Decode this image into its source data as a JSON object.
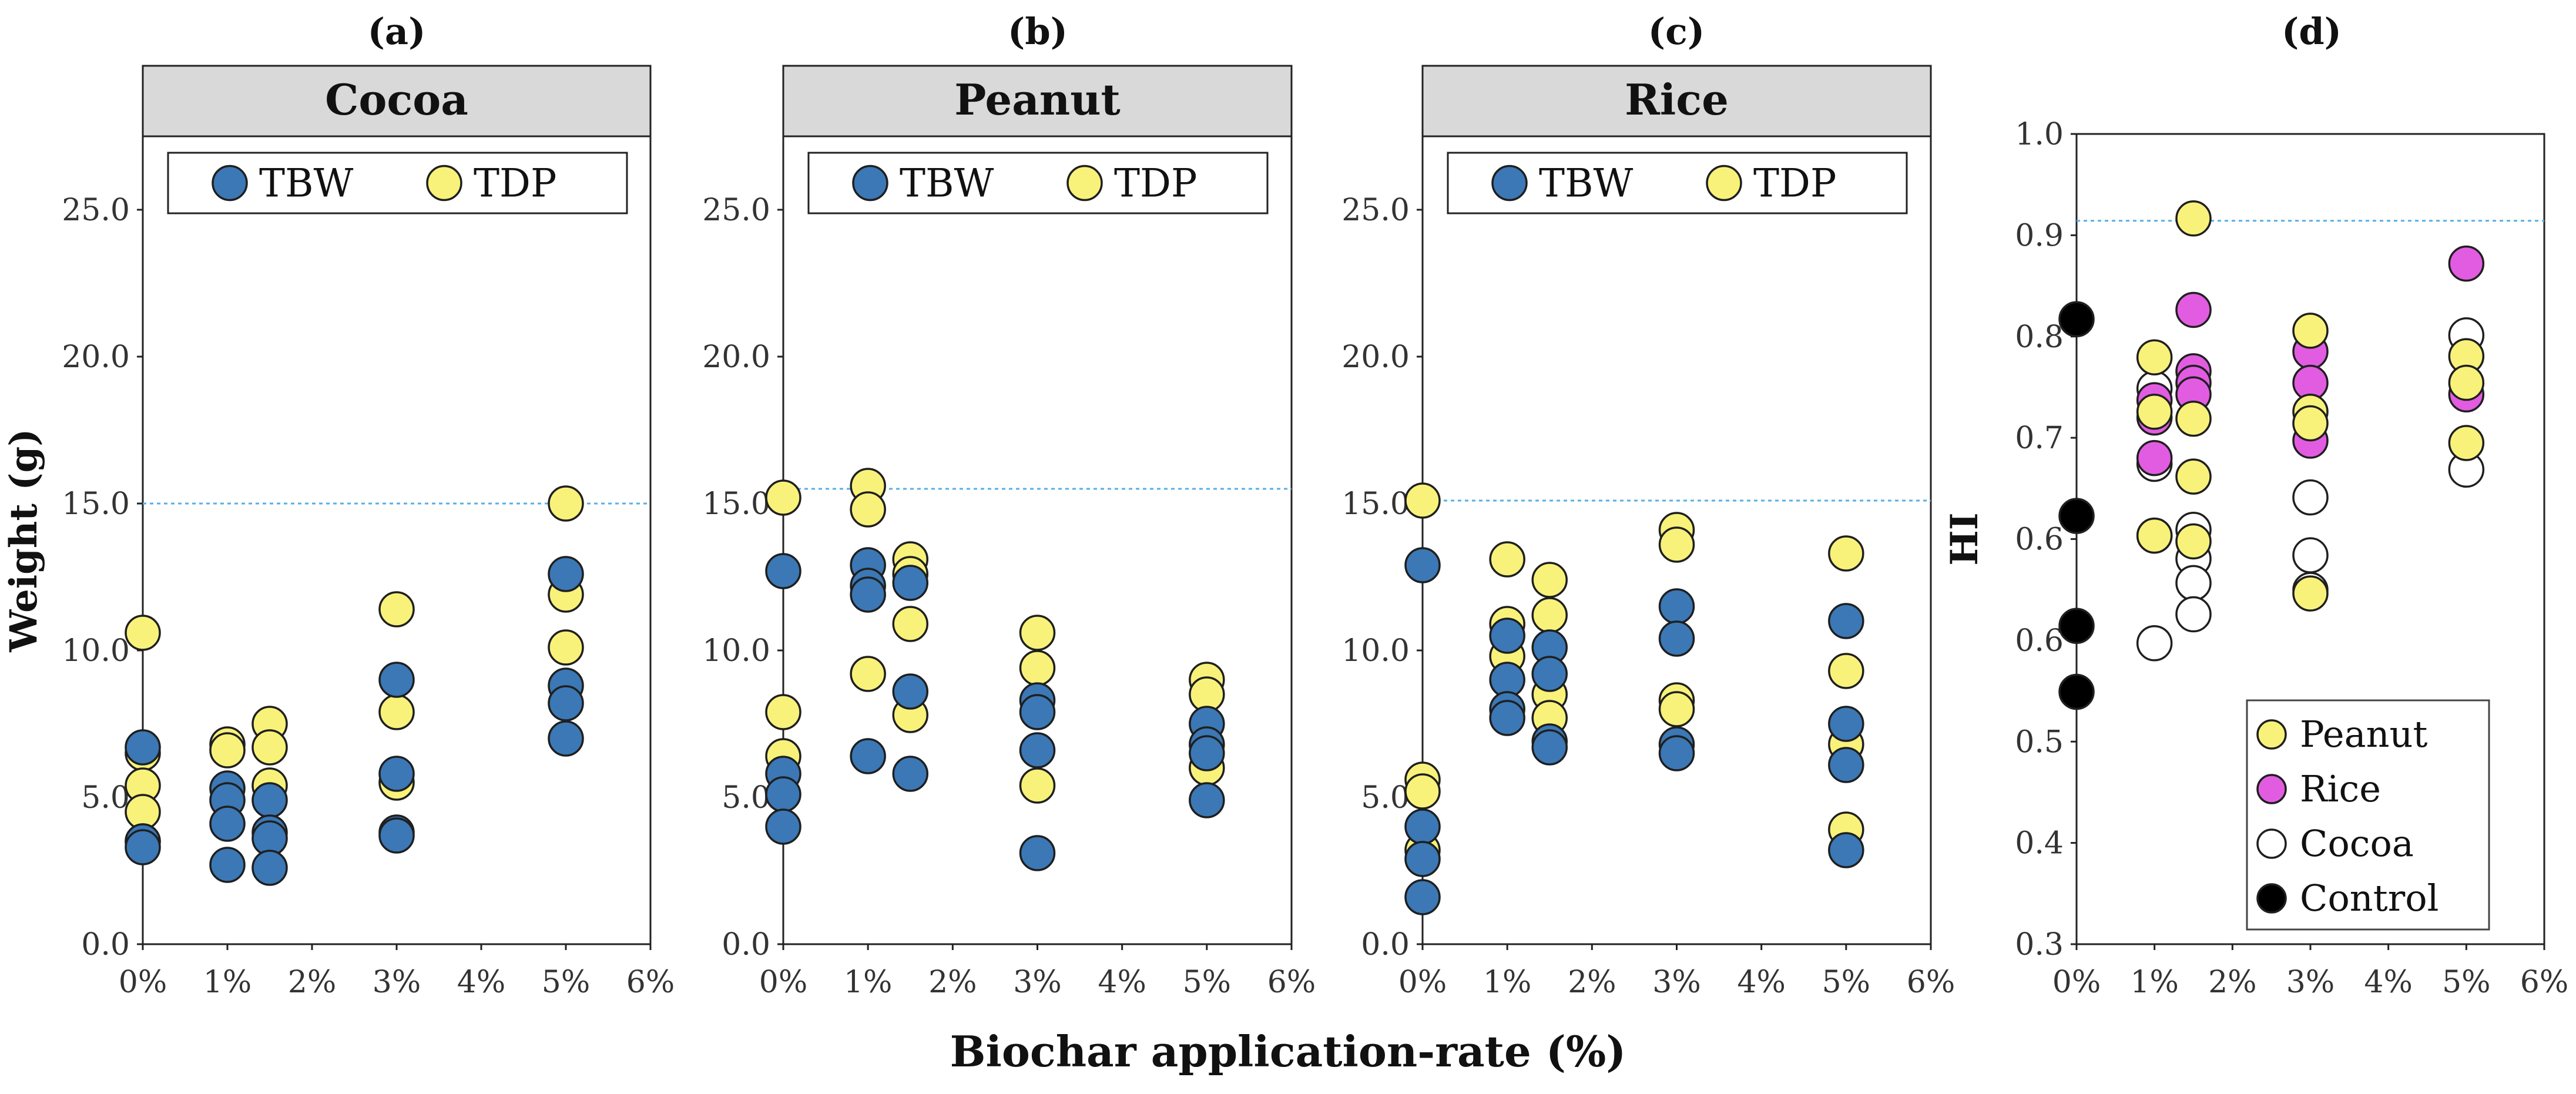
{
  "figure": {
    "xlabel": "Biochar application-rate (%)",
    "xticks": [
      "0%",
      "1%",
      "2%",
      "3%",
      "4%",
      "5%",
      "6%"
    ]
  },
  "colors": {
    "tbw": "#3b78b5",
    "tdp": "#f8f27a",
    "rice": "#e25ce2",
    "cocoa": "#ffffff",
    "control": "#000000",
    "refline": "#5aaee5",
    "strip": "#d9d9d9"
  },
  "chart_data": [
    {
      "type": "scatter",
      "panel": "(a)",
      "title": "Cocoa",
      "ylabel": "Weight (g)",
      "ylim": [
        0,
        27.5
      ],
      "yticks": [
        "0.0",
        "5.0",
        "10.0",
        "15.0",
        "20.0",
        "25.0"
      ],
      "xlim": [
        0,
        6
      ],
      "reference_line": 15.0,
      "legend": [
        "TBW",
        "TDP"
      ],
      "series": [
        {
          "name": "TDP",
          "color": "tdp",
          "points": [
            [
              0,
              10.6
            ],
            [
              0,
              6.5
            ],
            [
              0,
              5.4
            ],
            [
              0,
              4.5
            ],
            [
              0,
              3.5
            ],
            [
              1,
              6.8
            ],
            [
              1,
              6.6
            ],
            [
              1.5,
              7.5
            ],
            [
              1.5,
              6.7
            ],
            [
              1.5,
              5.4
            ],
            [
              3,
              11.4
            ],
            [
              3,
              7.9
            ],
            [
              3,
              5.5
            ],
            [
              5,
              15.0
            ],
            [
              5,
              11.9
            ],
            [
              5,
              10.1
            ]
          ]
        },
        {
          "name": "TBW",
          "color": "tbw",
          "points": [
            [
              0,
              6.7
            ],
            [
              0,
              3.5
            ],
            [
              0,
              3.3
            ],
            [
              1,
              5.3
            ],
            [
              1,
              4.9
            ],
            [
              1,
              4.1
            ],
            [
              1,
              2.7
            ],
            [
              1.5,
              4.9
            ],
            [
              1.5,
              3.8
            ],
            [
              1.5,
              3.6
            ],
            [
              1.5,
              2.6
            ],
            [
              3,
              9.0
            ],
            [
              3,
              5.8
            ],
            [
              3,
              3.8
            ],
            [
              3,
              3.7
            ],
            [
              5,
              12.6
            ],
            [
              5,
              8.8
            ],
            [
              5,
              8.2
            ],
            [
              5,
              7.0
            ]
          ]
        }
      ]
    },
    {
      "type": "scatter",
      "panel": "(b)",
      "title": "Peanut",
      "ylim": [
        0,
        27.5
      ],
      "yticks": [
        "0.0",
        "5.0",
        "10.0",
        "15.0",
        "20.0",
        "25.0"
      ],
      "xlim": [
        0,
        6
      ],
      "reference_line": 15.5,
      "legend": [
        "TBW",
        "TDP"
      ],
      "series": [
        {
          "name": "TDP",
          "color": "tdp",
          "points": [
            [
              0,
              15.2
            ],
            [
              0,
              7.9
            ],
            [
              0,
              6.4
            ],
            [
              1,
              15.6
            ],
            [
              1,
              14.8
            ],
            [
              1,
              9.2
            ],
            [
              1.5,
              13.1
            ],
            [
              1.5,
              12.6
            ],
            [
              1.5,
              10.9
            ],
            [
              1.5,
              7.8
            ],
            [
              3,
              10.6
            ],
            [
              3,
              9.4
            ],
            [
              3,
              5.4
            ],
            [
              5,
              9.0
            ],
            [
              5,
              8.5
            ],
            [
              5,
              6.0
            ]
          ]
        },
        {
          "name": "TBW",
          "color": "tbw",
          "points": [
            [
              0,
              12.7
            ],
            [
              0,
              5.8
            ],
            [
              0,
              5.1
            ],
            [
              0,
              4.0
            ],
            [
              1,
              12.9
            ],
            [
              1,
              12.2
            ],
            [
              1,
              11.9
            ],
            [
              1,
              6.4
            ],
            [
              1.5,
              12.3
            ],
            [
              1.5,
              8.6
            ],
            [
              1.5,
              5.8
            ],
            [
              3,
              8.3
            ],
            [
              3,
              7.9
            ],
            [
              3,
              6.6
            ],
            [
              3,
              3.1
            ],
            [
              5,
              7.5
            ],
            [
              5,
              6.8
            ],
            [
              5,
              6.5
            ],
            [
              5,
              4.9
            ]
          ]
        }
      ]
    },
    {
      "type": "scatter",
      "panel": "(c)",
      "title": "Rice",
      "ylim": [
        0,
        27.5
      ],
      "yticks": [
        "0.0",
        "5.0",
        "10.0",
        "15.0",
        "20.0",
        "25.0"
      ],
      "xlim": [
        0,
        6
      ],
      "reference_line": 15.1,
      "legend": [
        "TBW",
        "TDP"
      ],
      "series": [
        {
          "name": "TDP",
          "color": "tdp",
          "points": [
            [
              0,
              15.1
            ],
            [
              0,
              5.6
            ],
            [
              0,
              5.2
            ],
            [
              0,
              3.2
            ],
            [
              1,
              13.1
            ],
            [
              1,
              10.9
            ],
            [
              1,
              9.8
            ],
            [
              1.5,
              12.4
            ],
            [
              1.5,
              11.2
            ],
            [
              1.5,
              8.5
            ],
            [
              1.5,
              7.7
            ],
            [
              3,
              14.1
            ],
            [
              3,
              13.6
            ],
            [
              3,
              8.3
            ],
            [
              3,
              8.0
            ],
            [
              5,
              13.3
            ],
            [
              5,
              9.3
            ],
            [
              5,
              6.8
            ],
            [
              5,
              3.9
            ]
          ]
        },
        {
          "name": "TBW",
          "color": "tbw",
          "points": [
            [
              0,
              12.9
            ],
            [
              0,
              4.0
            ],
            [
              0,
              2.9
            ],
            [
              0,
              1.6
            ],
            [
              1,
              10.5
            ],
            [
              1,
              9.0
            ],
            [
              1,
              8.0
            ],
            [
              1,
              7.7
            ],
            [
              1.5,
              10.1
            ],
            [
              1.5,
              9.2
            ],
            [
              1.5,
              6.9
            ],
            [
              1.5,
              6.7
            ],
            [
              3,
              11.5
            ],
            [
              3,
              10.4
            ],
            [
              3,
              6.8
            ],
            [
              3,
              6.5
            ],
            [
              5,
              11.0
            ],
            [
              5,
              7.5
            ],
            [
              5,
              6.1
            ],
            [
              5,
              3.2
            ]
          ]
        }
      ]
    },
    {
      "type": "scatter",
      "panel": "(d)",
      "ylabel": "HI",
      "ylim": [
        0.3,
        1.0
      ],
      "yticks": [
        "0.3",
        "0.4",
        "0.5",
        "0.6",
        "0.6",
        "0.7",
        "0.8",
        "0.9",
        "1.0"
      ],
      "xlim": [
        0,
        6
      ],
      "reference_line": 0.925,
      "legend": [
        "Peanut",
        "Rice",
        "Cocoa",
        "Control"
      ],
      "series": [
        {
          "name": "Control",
          "color": "control",
          "points": [
            [
              0,
              0.84
            ],
            [
              0,
              0.67
            ],
            [
              0,
              0.575
            ],
            [
              0,
              0.518
            ]
          ]
        },
        {
          "name": "Cocoa",
          "color": "cocoa",
          "points": [
            [
              1,
              0.78
            ],
            [
              1,
              0.715
            ],
            [
              1,
              0.653
            ],
            [
              1,
              0.56
            ],
            [
              1.5,
              0.658
            ],
            [
              1.5,
              0.633
            ],
            [
              1.5,
              0.612
            ],
            [
              1.5,
              0.585
            ],
            [
              3,
              0.686
            ],
            [
              3,
              0.636
            ],
            [
              3,
              0.606
            ],
            [
              5,
              0.826
            ],
            [
              5,
              0.71
            ]
          ]
        },
        {
          "name": "Rice",
          "color": "rice",
          "points": [
            [
              1,
              0.77
            ],
            [
              1,
              0.755
            ],
            [
              1,
              0.72
            ],
            [
              1.5,
              0.848
            ],
            [
              1.5,
              0.795
            ],
            [
              1.5,
              0.785
            ],
            [
              1.5,
              0.775
            ],
            [
              3,
              0.812
            ],
            [
              3,
              0.785
            ],
            [
              3,
              0.735
            ],
            [
              5,
              0.888
            ],
            [
              5,
              0.775
            ]
          ]
        },
        {
          "name": "Peanut",
          "color": "tdp",
          "points": [
            [
              1,
              0.807
            ],
            [
              1,
              0.76
            ],
            [
              1,
              0.653
            ],
            [
              1.5,
              0.927
            ],
            [
              1.5,
              0.754
            ],
            [
              1.5,
              0.704
            ],
            [
              1.5,
              0.648
            ],
            [
              3,
              0.83
            ],
            [
              3,
              0.76
            ],
            [
              3,
              0.75
            ],
            [
              3,
              0.603
            ],
            [
              5,
              0.808
            ],
            [
              5,
              0.785
            ],
            [
              5,
              0.733
            ]
          ]
        }
      ]
    }
  ]
}
